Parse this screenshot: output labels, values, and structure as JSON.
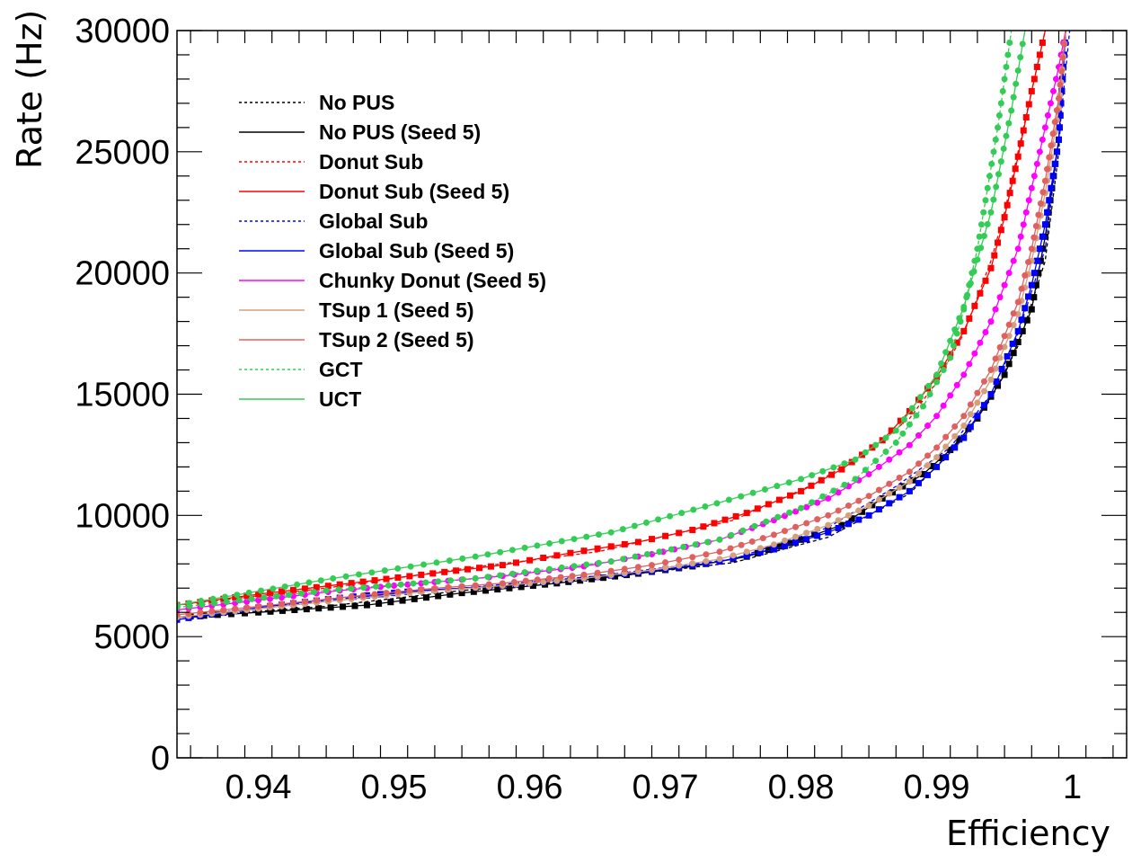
{
  "chart_data": {
    "type": "line",
    "xlabel": "Efficiency",
    "ylabel": "Rate (Hz)",
    "xlim": [
      0.934,
      1.004
    ],
    "ylim": [
      0,
      30000
    ],
    "x_ticks": [
      "0.94",
      "0.95",
      "0.96",
      "0.97",
      "0.98",
      "0.99",
      "1"
    ],
    "x_tick_values": [
      0.94,
      0.95,
      0.96,
      0.97,
      0.98,
      0.99,
      1.0
    ],
    "y_ticks": [
      "0",
      "5000",
      "10000",
      "15000",
      "20000",
      "25000",
      "30000"
    ],
    "y_tick_values": [
      0,
      5000,
      10000,
      15000,
      20000,
      25000,
      30000
    ],
    "grid": false,
    "legend_position": "top-left",
    "series": [
      {
        "name": "No PUS",
        "color": "#000000",
        "dashed": true,
        "markers": false,
        "x": [
          0.934,
          0.945,
          0.955,
          0.965,
          0.975,
          0.982,
          0.988,
          0.991,
          0.994,
          0.996,
          0.998,
          0.999,
          0.9995
        ],
        "y": [
          5800,
          6250,
          6900,
          7400,
          8050,
          9100,
          10900,
          12600,
          14800,
          17000,
          20500,
          25000,
          30000
        ]
      },
      {
        "name": "No PUS (Seed 5)",
        "color": "#000000",
        "dashed": false,
        "markers": true,
        "marker": "square",
        "x": [
          0.934,
          0.94,
          0.948,
          0.955,
          0.962,
          0.968,
          0.972,
          0.976,
          0.98,
          0.983,
          0.986,
          0.989,
          0.991,
          0.993,
          0.995,
          0.997,
          0.998,
          0.999,
          0.9995
        ],
        "y": [
          5800,
          6000,
          6300,
          6800,
          7200,
          7600,
          7900,
          8300,
          9000,
          9600,
          10700,
          11700,
          12700,
          14000,
          15800,
          18500,
          21500,
          25500,
          30000
        ]
      },
      {
        "name": "Donut Sub",
        "color": "#ff0000",
        "dashed": true,
        "markers": false,
        "x": [
          0.934,
          0.945,
          0.955,
          0.965,
          0.975,
          0.981,
          0.985,
          0.988,
          0.99,
          0.992,
          0.994,
          0.995,
          0.996,
          0.997,
          0.998
        ],
        "y": [
          6300,
          7000,
          7800,
          8500,
          9800,
          11300,
          12700,
          14000,
          15500,
          17500,
          20500,
          22500,
          25000,
          27500,
          30000
        ]
      },
      {
        "name": "Donut Sub (Seed 5)",
        "color": "#ff0000",
        "dashed": false,
        "markers": true,
        "marker": "square",
        "x": [
          0.934,
          0.94,
          0.946,
          0.952,
          0.958,
          0.963,
          0.968,
          0.972,
          0.976,
          0.98,
          0.983,
          0.986,
          0.988,
          0.99,
          0.992,
          0.994,
          0.995,
          0.996,
          0.997,
          0.998
        ],
        "y": [
          6300,
          6750,
          7150,
          7550,
          7950,
          8450,
          8900,
          9400,
          10100,
          11000,
          11900,
          13100,
          14300,
          15700,
          17600,
          20200,
          22300,
          24800,
          27500,
          30000
        ]
      },
      {
        "name": "Global Sub",
        "color": "#0000ff",
        "dashed": true,
        "markers": false,
        "x": [
          0.934,
          0.945,
          0.955,
          0.965,
          0.975,
          0.982,
          0.987,
          0.991,
          0.994,
          0.996,
          0.998,
          0.999,
          0.9998
        ],
        "y": [
          5700,
          6500,
          7000,
          7500,
          8200,
          9500,
          11200,
          12800,
          15000,
          17500,
          21000,
          25500,
          30000
        ]
      },
      {
        "name": "Global Sub (Seed 5)",
        "color": "#0000ff",
        "dashed": false,
        "markers": true,
        "marker": "square",
        "x": [
          0.934,
          0.94,
          0.946,
          0.952,
          0.958,
          0.964,
          0.969,
          0.974,
          0.978,
          0.982,
          0.985,
          0.988,
          0.99,
          0.992,
          0.994,
          0.996,
          0.997,
          0.998,
          0.999,
          0.9995
        ],
        "y": [
          5700,
          6200,
          6600,
          6900,
          7100,
          7400,
          7700,
          8100,
          8600,
          9300,
          10000,
          11000,
          12000,
          13200,
          15000,
          17600,
          19500,
          22000,
          25500,
          30000
        ]
      },
      {
        "name": "Chunky Donut (Seed 5)",
        "color": "#ff00ff",
        "dashed": false,
        "markers": true,
        "marker": "circle",
        "x": [
          0.934,
          0.94,
          0.946,
          0.952,
          0.958,
          0.964,
          0.969,
          0.974,
          0.978,
          0.982,
          0.985,
          0.988,
          0.99,
          0.992,
          0.994,
          0.996,
          0.997,
          0.998,
          0.999,
          0.9995
        ],
        "y": [
          6100,
          6500,
          6900,
          7200,
          7500,
          7900,
          8400,
          9000,
          9800,
          10700,
          11700,
          12900,
          14100,
          15800,
          18000,
          21000,
          23500,
          26000,
          28500,
          30000
        ]
      },
      {
        "name": "TSup 1 (Seed 5)",
        "color": "#d2a07f",
        "dashed": false,
        "markers": true,
        "marker": "circle",
        "x": [
          0.934,
          0.94,
          0.946,
          0.952,
          0.958,
          0.964,
          0.969,
          0.974,
          0.978,
          0.982,
          0.985,
          0.988,
          0.99,
          0.992,
          0.994,
          0.996,
          0.997,
          0.998,
          0.999,
          0.9995
        ],
        "y": [
          5800,
          6150,
          6500,
          6850,
          7100,
          7400,
          7750,
          8200,
          8800,
          9600,
          10400,
          11400,
          12400,
          13700,
          15600,
          18300,
          20500,
          23300,
          26800,
          30000
        ]
      },
      {
        "name": "TSup 2 (Seed 5)",
        "color": "#e06060",
        "dashed": false,
        "markers": true,
        "marker": "circle",
        "x": [
          0.934,
          0.94,
          0.946,
          0.952,
          0.958,
          0.964,
          0.969,
          0.974,
          0.978,
          0.982,
          0.985,
          0.988,
          0.99,
          0.992,
          0.994,
          0.996,
          0.997,
          0.998,
          0.999,
          0.9995
        ],
        "y": [
          5900,
          6250,
          6600,
          6950,
          7200,
          7550,
          7950,
          8500,
          9200,
          10000,
          10800,
          11800,
          12800,
          14100,
          16000,
          18800,
          21000,
          23800,
          27200,
          30000
        ]
      },
      {
        "name": "GCT",
        "color": "#33cc55",
        "dashed": true,
        "markers": true,
        "marker": "circle",
        "x": [
          0.934,
          0.945,
          0.956,
          0.966,
          0.974,
          0.98,
          0.984,
          0.987,
          0.989,
          0.991,
          0.992,
          0.993,
          0.9945,
          0.9955
        ],
        "y": [
          6200,
          6900,
          7400,
          8100,
          9000,
          10300,
          11500,
          13000,
          14500,
          16500,
          18500,
          21000,
          26000,
          30000
        ]
      },
      {
        "name": "UCT",
        "color": "#33cc55",
        "dashed": false,
        "markers": true,
        "marker": "circle",
        "x": [
          0.934,
          0.9455,
          0.956,
          0.966,
          0.9738,
          0.98,
          0.984,
          0.987,
          0.99,
          0.992,
          0.994,
          0.9955,
          0.9965
        ],
        "y": [
          6300,
          7400,
          8300,
          9300,
          10500,
          11500,
          12300,
          13500,
          15800,
          18600,
          22500,
          26700,
          30000
        ]
      }
    ]
  }
}
